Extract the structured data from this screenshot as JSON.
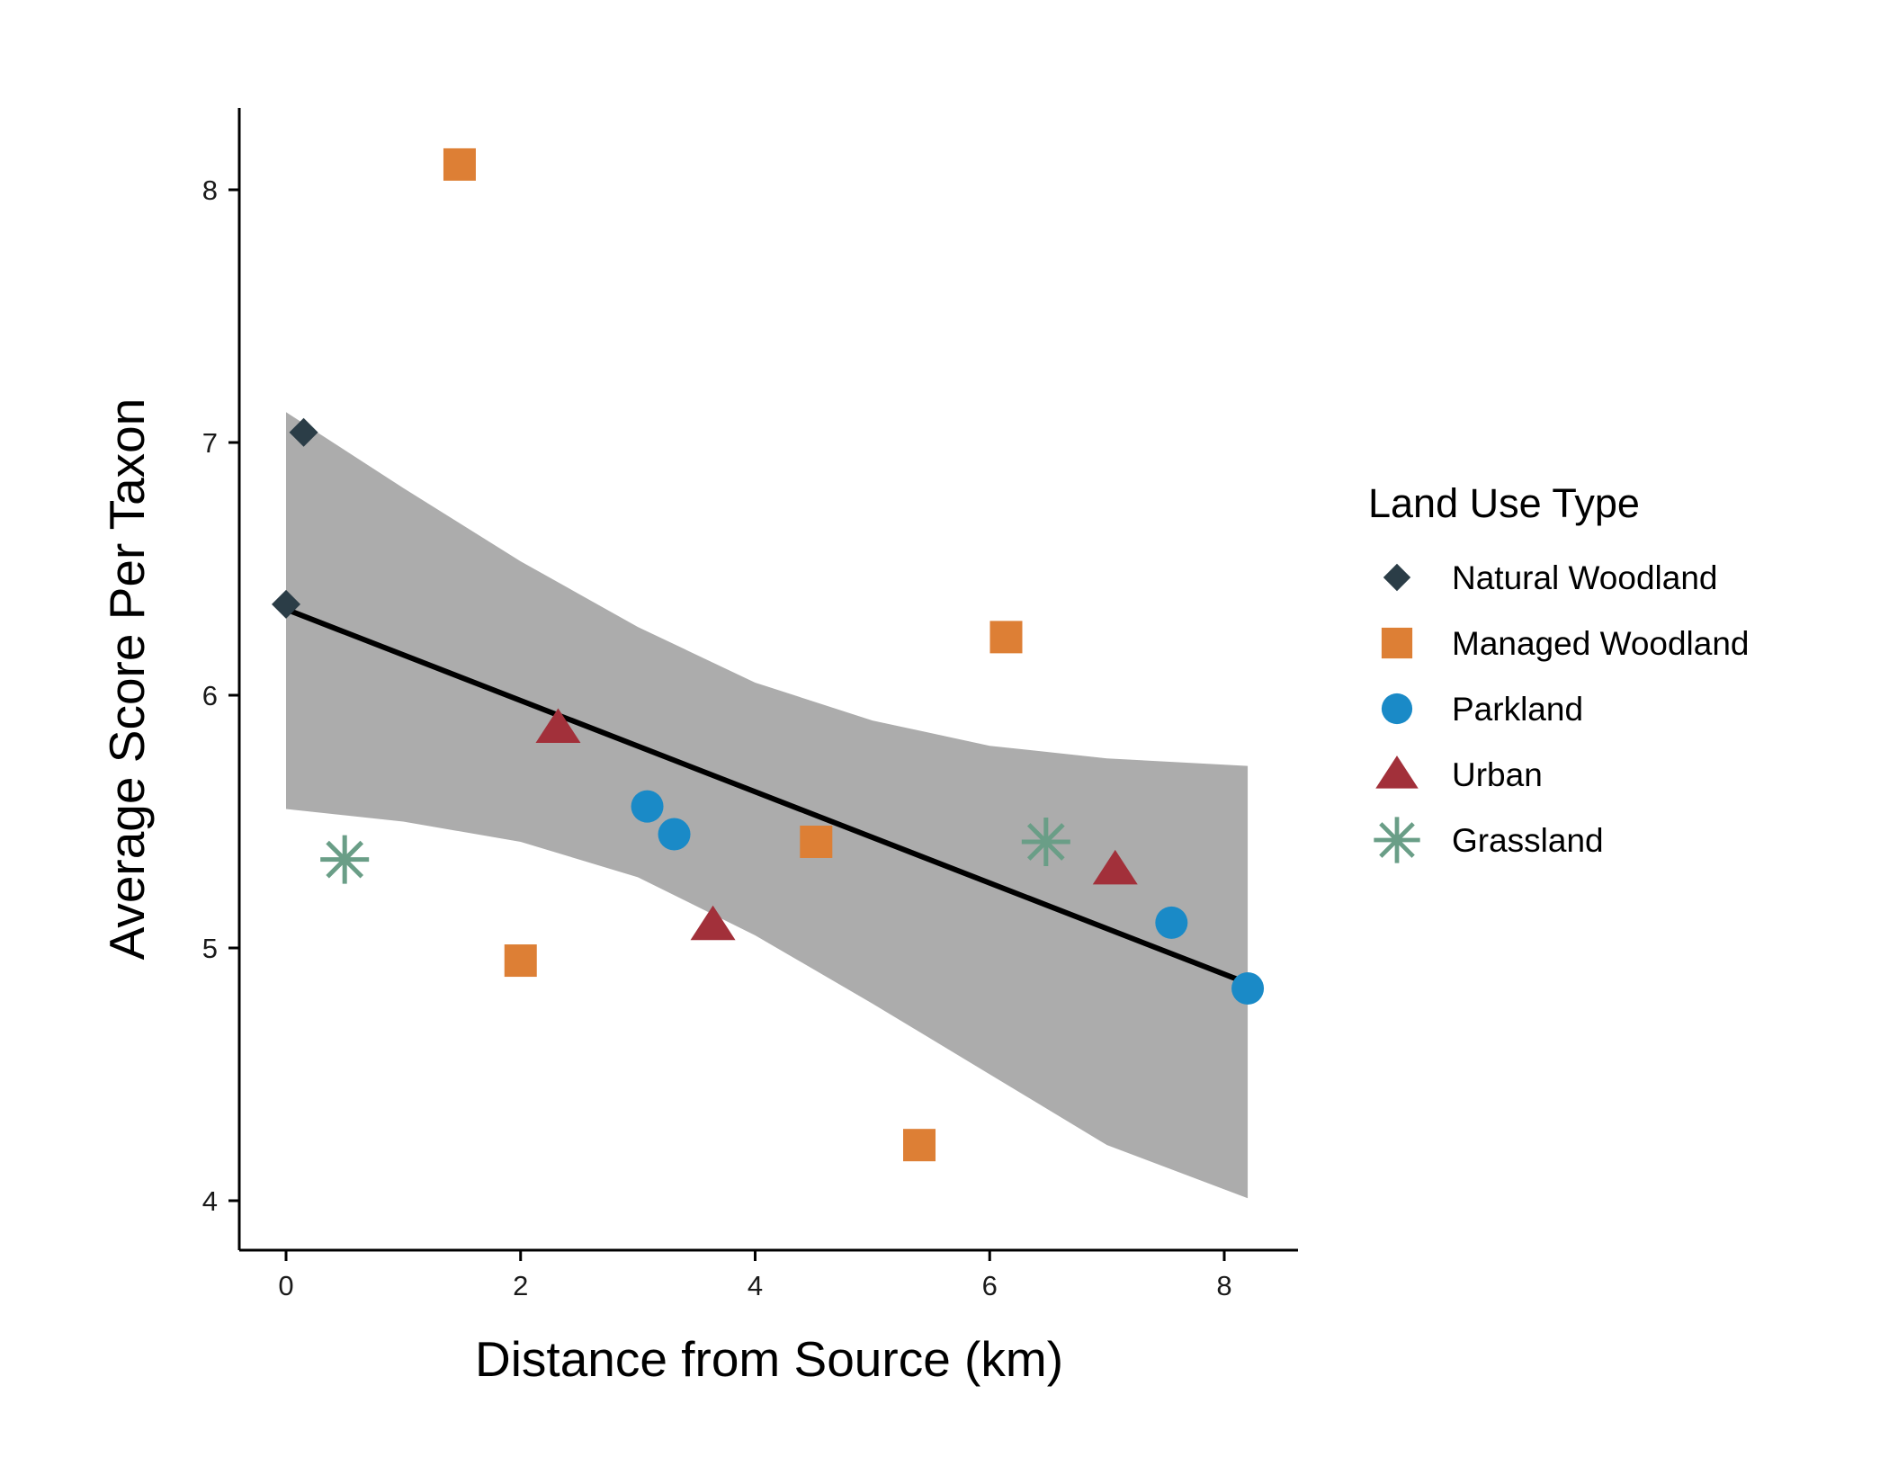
{
  "chart_data": {
    "type": "scatter",
    "xlabel": "Distance from Source (km)",
    "ylabel": "Average Score Per Taxon",
    "xlim": [
      -0.4,
      8.6
    ],
    "ylim": [
      3.8,
      8.3
    ],
    "x_ticks": [
      0,
      2,
      4,
      6,
      8
    ],
    "y_ticks": [
      4,
      5,
      6,
      7,
      8
    ],
    "grid": false,
    "legend": {
      "title": "Land Use Type",
      "placement": "right"
    },
    "series": [
      {
        "name": "Natural Woodland",
        "marker": "diamond",
        "color": "#2b3d47",
        "points": [
          {
            "x": 0.15,
            "y": 7.04
          },
          {
            "x": 0.0,
            "y": 6.36
          }
        ]
      },
      {
        "name": "Managed Woodland",
        "marker": "square",
        "color": "#dd7f35",
        "points": [
          {
            "x": 1.48,
            "y": 8.1
          },
          {
            "x": 2.0,
            "y": 4.95
          },
          {
            "x": 4.52,
            "y": 5.42
          },
          {
            "x": 5.4,
            "y": 4.22
          },
          {
            "x": 6.14,
            "y": 6.23
          }
        ]
      },
      {
        "name": "Parkland",
        "marker": "circle",
        "color": "#1a8ac7",
        "points": [
          {
            "x": 3.08,
            "y": 5.56
          },
          {
            "x": 3.31,
            "y": 5.45
          },
          {
            "x": 7.55,
            "y": 5.1
          },
          {
            "x": 8.2,
            "y": 4.84
          }
        ]
      },
      {
        "name": "Urban",
        "marker": "triangle",
        "color": "#a2303a",
        "points": [
          {
            "x": 2.32,
            "y": 5.87
          },
          {
            "x": 3.64,
            "y": 5.09
          },
          {
            "x": 7.07,
            "y": 5.31
          }
        ]
      },
      {
        "name": "Grassland",
        "marker": "asterisk",
        "color": "#6a9e87",
        "points": [
          {
            "x": 0.5,
            "y": 5.35
          },
          {
            "x": 6.48,
            "y": 5.42
          }
        ]
      }
    ],
    "fit": {
      "type": "linear",
      "color": "#000000",
      "line": [
        {
          "x": 0.0,
          "y": 6.34
        },
        {
          "x": 8.2,
          "y": 4.86
        }
      ],
      "ci_band_color": "#acacac",
      "ci_upper": [
        {
          "x": 0.0,
          "y": 7.12
        },
        {
          "x": 1.0,
          "y": 6.82
        },
        {
          "x": 2.0,
          "y": 6.53
        },
        {
          "x": 3.0,
          "y": 6.27
        },
        {
          "x": 4.0,
          "y": 6.05
        },
        {
          "x": 5.0,
          "y": 5.9
        },
        {
          "x": 6.0,
          "y": 5.8
        },
        {
          "x": 7.0,
          "y": 5.75
        },
        {
          "x": 8.2,
          "y": 5.72
        }
      ],
      "ci_lower": [
        {
          "x": 0.0,
          "y": 5.55
        },
        {
          "x": 1.0,
          "y": 5.5
        },
        {
          "x": 2.0,
          "y": 5.42
        },
        {
          "x": 3.0,
          "y": 5.28
        },
        {
          "x": 4.0,
          "y": 5.05
        },
        {
          "x": 5.0,
          "y": 4.78
        },
        {
          "x": 6.0,
          "y": 4.5
        },
        {
          "x": 7.0,
          "y": 4.22
        },
        {
          "x": 8.2,
          "y": 4.01
        }
      ]
    }
  }
}
